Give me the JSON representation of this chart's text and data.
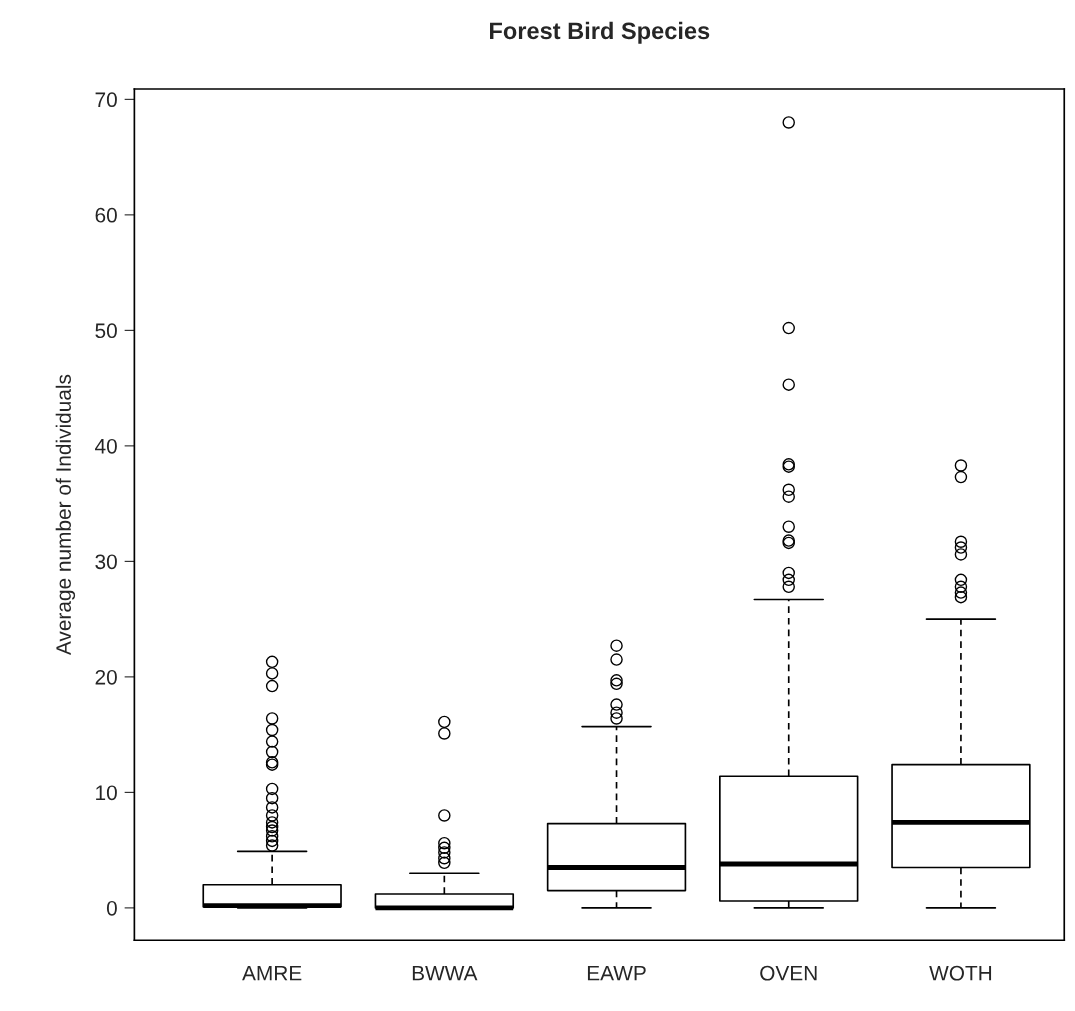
{
  "chart_data": {
    "type": "box",
    "title": "Forest Bird Species",
    "ylabel": "Average number of Individuals",
    "categories": [
      "AMRE",
      "BWWA",
      "EAWP",
      "OVEN",
      "WOTH"
    ],
    "boxes": [
      {
        "low": 0,
        "q1": 0.1,
        "median": 0.2,
        "q3": 2.0,
        "high": 4.9,
        "outliers": [
          21.3,
          20.3,
          19.2,
          16.4,
          15.4,
          14.4,
          13.5,
          12.6,
          12.4,
          10.3,
          9.5,
          8.7,
          8.0,
          7.4,
          7.0,
          6.7,
          6.2,
          5.8,
          5.4
        ]
      },
      {
        "low": 0,
        "q1": 0,
        "median": 0,
        "q3": 1.2,
        "high": 3.0,
        "outliers": [
          16.1,
          15.1,
          8.0,
          5.6,
          5.2,
          4.8,
          4.3,
          3.9
        ]
      },
      {
        "low": 0,
        "q1": 1.5,
        "median": 3.5,
        "q3": 7.3,
        "high": 15.7,
        "outliers": [
          22.7,
          21.5,
          19.7,
          19.4,
          17.6,
          16.9,
          16.4
        ]
      },
      {
        "low": 0,
        "q1": 0.6,
        "median": 3.8,
        "q3": 11.4,
        "high": 26.7,
        "outliers": [
          68.0,
          50.2,
          45.3,
          38.4,
          38.2,
          36.2,
          35.6,
          33.0,
          31.8,
          31.6,
          29.0,
          28.4,
          27.8
        ]
      },
      {
        "low": 0,
        "q1": 3.5,
        "median": 7.4,
        "q3": 12.4,
        "high": 25.0,
        "outliers": [
          38.3,
          37.3,
          31.7,
          31.2,
          30.6,
          28.4,
          27.8,
          27.3,
          26.9
        ]
      }
    ],
    "ylim": [
      -2.8,
      70.9
    ],
    "yticks": [
      0,
      10,
      20,
      30,
      40,
      50,
      60,
      70
    ],
    "grid": false,
    "legend": false
  }
}
